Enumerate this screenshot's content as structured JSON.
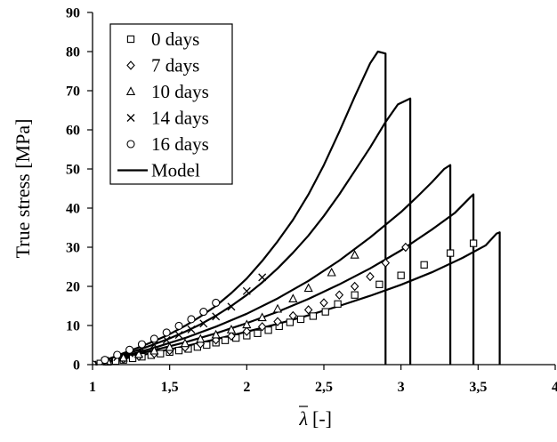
{
  "chart_data": {
    "type": "scatter",
    "xlabel_symbol": "λ",
    "xlabel_unit": "[-]",
    "ylabel": "True stress [MPa]",
    "xlim": [
      1,
      4
    ],
    "ylim": [
      0,
      90
    ],
    "x_ticks": [
      1,
      1.5,
      2,
      2.5,
      3,
      3.5,
      4
    ],
    "x_tick_labels": [
      "1",
      "1,5",
      "2",
      "2,5",
      "3",
      "3,5",
      "4"
    ],
    "y_ticks": [
      0,
      10,
      20,
      30,
      40,
      50,
      60,
      70,
      80,
      90
    ],
    "y_tick_labels": [
      "0",
      "10",
      "20",
      "30",
      "40",
      "50",
      "60",
      "70",
      "80",
      "90"
    ],
    "grid": false,
    "legend_position": "top-left",
    "legend": [
      {
        "label": "0 days",
        "marker": "square"
      },
      {
        "label": "7 days",
        "marker": "diamond"
      },
      {
        "label": "10 days",
        "marker": "triangle"
      },
      {
        "label": "14 days",
        "marker": "cross"
      },
      {
        "label": "16 days",
        "marker": "circle"
      },
      {
        "label": "Model",
        "marker": "line"
      }
    ],
    "series": [
      {
        "marker": "square",
        "x": [
          1.0,
          1.05,
          1.1,
          1.15,
          1.2,
          1.26,
          1.32,
          1.38,
          1.44,
          1.5,
          1.56,
          1.62,
          1.68,
          1.74,
          1.8,
          1.86,
          1.93,
          2.0,
          2.07,
          2.14,
          2.21,
          2.28,
          2.35,
          2.43,
          2.51,
          2.59,
          2.7,
          2.86,
          3.0,
          3.15,
          3.32,
          3.47
        ],
        "y": [
          0.0,
          0.3,
          0.6,
          0.9,
          1.2,
          1.6,
          2.0,
          2.4,
          2.8,
          3.2,
          3.6,
          4.0,
          4.5,
          5.0,
          5.6,
          6.2,
          6.8,
          7.4,
          8.0,
          8.8,
          9.8,
          10.8,
          11.6,
          12.4,
          13.5,
          15.5,
          17.8,
          20.5,
          22.8,
          25.5,
          28.5,
          31.0
        ]
      },
      {
        "marker": "diamond",
        "x": [
          1.0,
          1.1,
          1.2,
          1.3,
          1.4,
          1.5,
          1.6,
          1.7,
          1.8,
          1.9,
          2.0,
          2.1,
          2.2,
          2.3,
          2.4,
          2.5,
          2.6,
          2.7,
          2.8,
          2.9,
          3.03
        ],
        "y": [
          0.0,
          0.7,
          1.4,
          2.1,
          2.8,
          3.6,
          4.4,
          5.3,
          6.3,
          7.3,
          8.5,
          9.7,
          11.0,
          12.5,
          14.0,
          15.8,
          17.8,
          20.0,
          22.5,
          26.0,
          30.0
        ]
      },
      {
        "marker": "triangle",
        "x": [
          1.0,
          1.1,
          1.2,
          1.3,
          1.4,
          1.5,
          1.6,
          1.7,
          1.8,
          1.9,
          2.0,
          2.1,
          2.2,
          2.3,
          2.4,
          2.55,
          2.7
        ],
        "y": [
          0.0,
          0.8,
          1.7,
          2.6,
          3.5,
          4.4,
          5.4,
          6.5,
          7.6,
          8.9,
          10.2,
          12.0,
          14.2,
          16.8,
          19.5,
          23.5,
          28.0
        ]
      },
      {
        "marker": "cross",
        "x": [
          1.0,
          1.08,
          1.16,
          1.24,
          1.32,
          1.4,
          1.48,
          1.56,
          1.64,
          1.72,
          1.8,
          1.9,
          2.0,
          2.1
        ],
        "y": [
          0.0,
          0.9,
          1.9,
          2.9,
          4.0,
          5.1,
          6.3,
          7.6,
          9.0,
          10.5,
          12.3,
          14.8,
          18.8,
          22.3
        ]
      },
      {
        "marker": "circle",
        "x": [
          1.0,
          1.08,
          1.16,
          1.24,
          1.32,
          1.4,
          1.48,
          1.56,
          1.64,
          1.72,
          1.8
        ],
        "y": [
          0.0,
          1.2,
          2.5,
          3.8,
          5.2,
          6.6,
          8.2,
          9.9,
          11.6,
          13.5,
          15.8
        ]
      },
      {
        "marker": "line",
        "curves": [
          {
            "x": [
              1.0,
              1.1,
              1.2,
              1.3,
              1.4,
              1.5,
              1.6,
              1.7,
              1.8,
              1.9,
              2.0,
              2.1,
              2.2,
              2.3,
              2.4,
              2.5,
              2.6,
              2.7,
              2.8,
              2.85,
              2.9,
              2.9
            ],
            "y": [
              0.0,
              1.4,
              2.9,
              4.4,
              6.0,
              7.8,
              9.9,
              12.3,
              15.0,
              18.3,
              22.0,
              26.5,
              31.5,
              37.0,
              43.5,
              51.0,
              59.5,
              68.5,
              77.0,
              80.0,
              79.5,
              0.0
            ]
          },
          {
            "x": [
              1.0,
              1.1,
              1.2,
              1.3,
              1.4,
              1.5,
              1.6,
              1.7,
              1.8,
              1.9,
              2.0,
              2.1,
              2.2,
              2.3,
              2.4,
              2.5,
              2.6,
              2.7,
              2.8,
              2.9,
              2.98,
              3.06,
              3.06
            ],
            "y": [
              0.0,
              1.2,
              2.5,
              3.8,
              5.2,
              6.7,
              8.4,
              10.3,
              12.5,
              15.0,
              17.8,
              21.0,
              24.6,
              28.6,
              33.0,
              38.0,
              43.5,
              49.5,
              55.5,
              62.0,
              66.5,
              68.0,
              0.0
            ]
          },
          {
            "x": [
              1.0,
              1.2,
              1.4,
              1.6,
              1.8,
              2.0,
              2.2,
              2.4,
              2.6,
              2.8,
              3.0,
              3.1,
              3.2,
              3.28,
              3.32,
              3.32
            ],
            "y": [
              0.0,
              2.1,
              4.3,
              6.8,
              9.7,
              13.0,
              16.9,
              21.4,
              26.6,
              32.5,
              39.0,
              42.7,
              46.6,
              50.0,
              51.0,
              0.0
            ]
          },
          {
            "x": [
              1.0,
              1.2,
              1.4,
              1.6,
              1.8,
              2.0,
              2.2,
              2.4,
              2.6,
              2.8,
              3.0,
              3.2,
              3.35,
              3.45,
              3.47,
              3.47
            ],
            "y": [
              0.0,
              1.8,
              3.7,
              5.7,
              8.0,
              10.6,
              13.5,
              16.8,
              20.5,
              24.6,
              29.2,
              34.5,
              38.8,
              42.8,
              43.5,
              0.0
            ]
          },
          {
            "x": [
              1.0,
              1.2,
              1.4,
              1.6,
              1.8,
              2.0,
              2.2,
              2.4,
              2.6,
              2.8,
              3.0,
              3.2,
              3.4,
              3.55,
              3.62,
              3.64,
              3.64
            ],
            "y": [
              0.0,
              1.5,
              3.1,
              4.7,
              6.5,
              8.4,
              10.4,
              12.6,
              15.0,
              17.6,
              20.4,
              23.6,
              27.3,
              30.5,
              33.5,
              33.8,
              0.0
            ]
          }
        ]
      }
    ]
  }
}
